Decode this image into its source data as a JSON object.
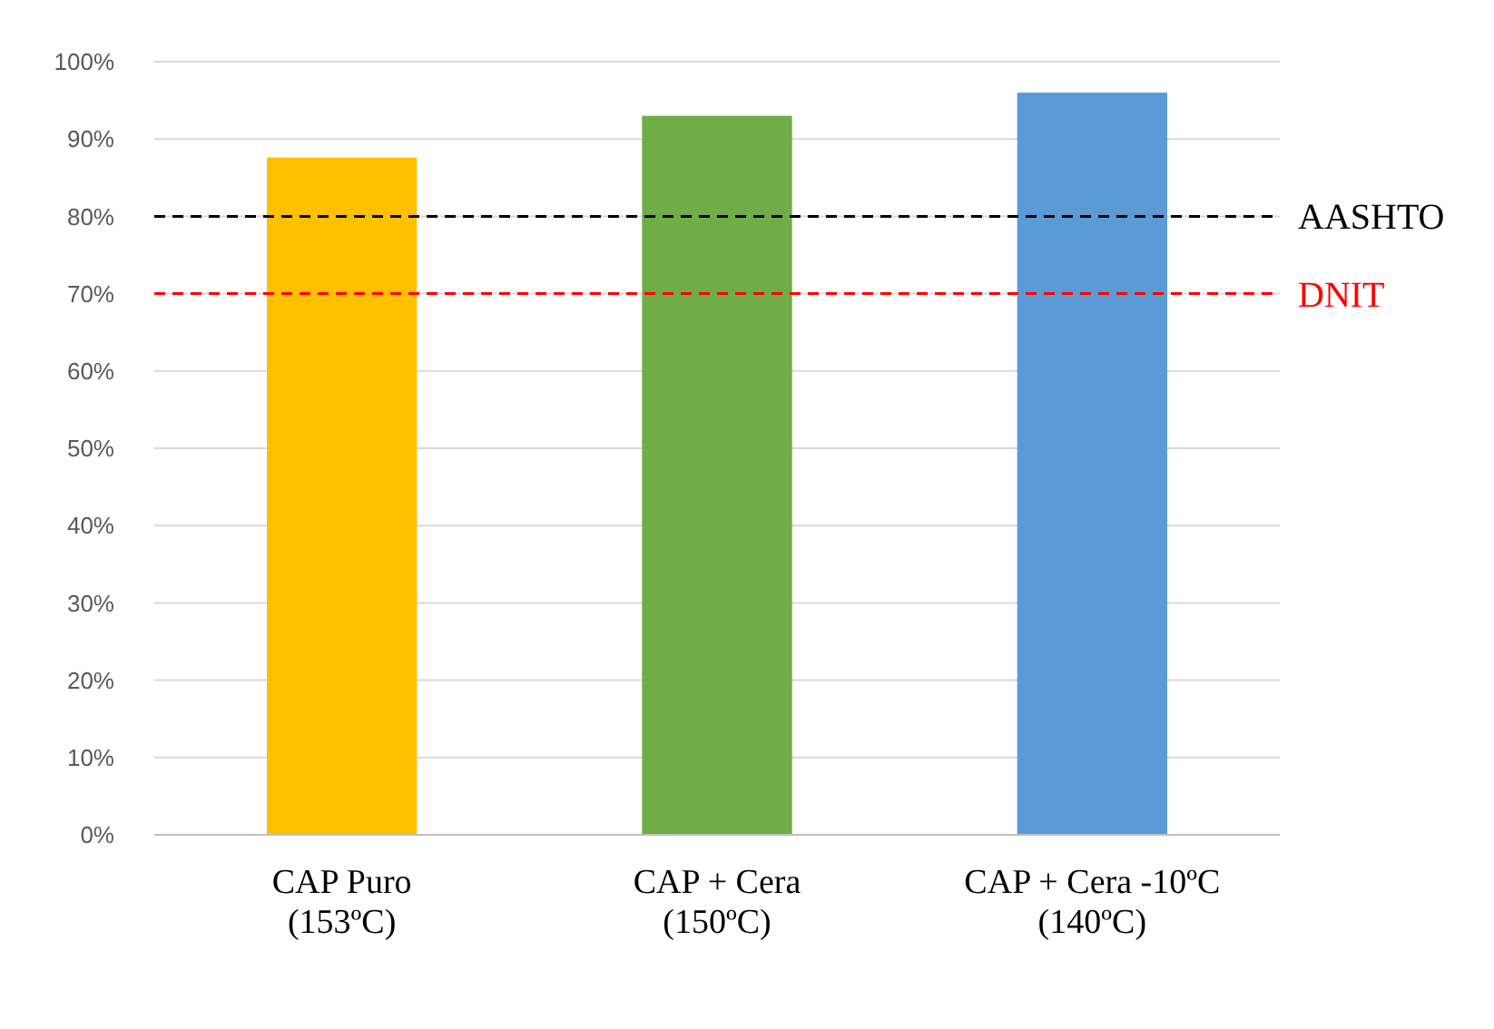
{
  "chart_data": {
    "type": "bar",
    "categories": [
      "CAP Puro\n(153ºC)",
      "CAP + Cera\n(150ºC)",
      "CAP + Cera -10ºC\n(140ºC)"
    ],
    "values": [
      87.6,
      93.0,
      96.0
    ],
    "colors": [
      "#ffc000",
      "#70ad47",
      "#5b9bd5"
    ],
    "ylim": [
      0,
      100
    ],
    "yticks": [
      {
        "value": 0,
        "label": "0%"
      },
      {
        "value": 10,
        "label": "10%"
      },
      {
        "value": 20,
        "label": "20%"
      },
      {
        "value": 30,
        "label": "30%"
      },
      {
        "value": 40,
        "label": "40%"
      },
      {
        "value": 50,
        "label": "50%"
      },
      {
        "value": 60,
        "label": "60%"
      },
      {
        "value": 70,
        "label": "70%"
      },
      {
        "value": 80,
        "label": "80%"
      },
      {
        "value": 90,
        "label": "90%"
      },
      {
        "value": 100,
        "label": "100%"
      }
    ],
    "grid": "y",
    "ref_lines": [
      {
        "axis": "y",
        "value": 80,
        "label": "AASHTO",
        "color": "#000000",
        "line_style": "dashed"
      },
      {
        "axis": "y",
        "value": 70,
        "label": "DNIT",
        "color": "#ff0000",
        "line_style": "dashed"
      }
    ]
  }
}
